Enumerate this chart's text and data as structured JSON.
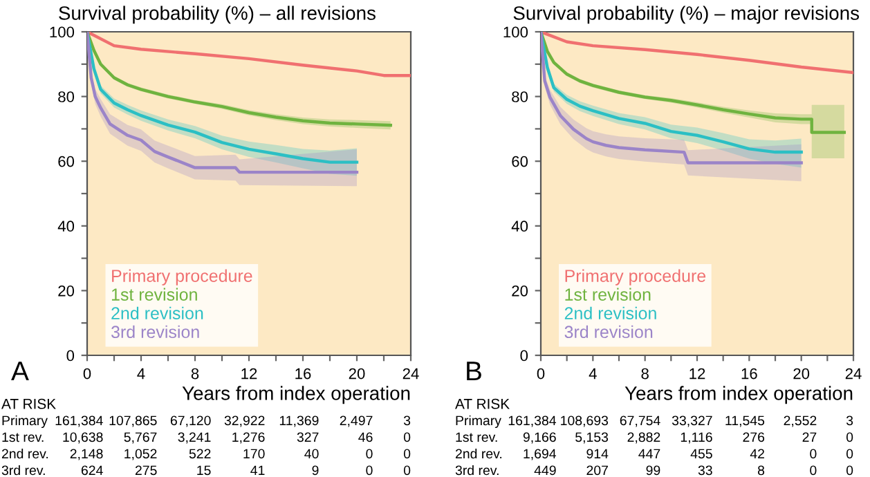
{
  "chart_data": [
    {
      "type": "line",
      "title": "Survival probability (%) – all revisions",
      "xlabel": "Years from index operation",
      "xlim": [
        0,
        24
      ],
      "ylim": [
        0,
        100
      ],
      "xticks": [
        0,
        {
          "value": 2,
          "label": null
        },
        4,
        {
          "value": 6,
          "label": null
        },
        8,
        {
          "value": 10,
          "label": null
        },
        12,
        {
          "value": 14,
          "label": null
        },
        16,
        {
          "value": 18,
          "label": null
        },
        20,
        {
          "value": 22,
          "label": null
        },
        24
      ],
      "yticks": [
        0,
        {
          "value": 10,
          "label": null
        },
        20,
        {
          "value": 30,
          "label": null
        },
        40,
        {
          "value": 50,
          "label": null
        },
        60,
        {
          "value": 70,
          "label": null
        },
        80,
        {
          "value": 90,
          "label": null
        },
        100
      ],
      "legend": "bottom left",
      "series": [
        {
          "name": "Primary procedure",
          "color": "#f07070",
          "x": [
            0,
            2,
            4,
            8,
            12,
            16,
            20,
            22,
            24
          ],
          "values": [
            100,
            95.7,
            94.6,
            93.2,
            91.7,
            89.7,
            87.9,
            86.5,
            86.5
          ]
        },
        {
          "name": "1st revision",
          "color": "#6fb33f",
          "x": [
            0,
            0.5,
            1,
            2,
            3,
            4,
            6,
            8,
            10,
            12,
            14,
            16,
            18,
            20,
            22.5
          ],
          "values": [
            100,
            94.3,
            90,
            85.8,
            83.6,
            82.2,
            80,
            78.3,
            76.9,
            75,
            73.6,
            72.5,
            71.8,
            71.5,
            71.1
          ],
          "lower": [
            100,
            93.8,
            89.4,
            85.2,
            83,
            81.6,
            79.4,
            77.7,
            76.2,
            74.2,
            72.7,
            71.5,
            70.7,
            70.3,
            69.8
          ],
          "upper": [
            100,
            94.8,
            90.6,
            86.4,
            84.2,
            82.8,
            80.6,
            78.9,
            77.6,
            75.8,
            74.5,
            73.5,
            72.9,
            72.7,
            72.4
          ]
        },
        {
          "name": "2nd revision",
          "color": "#2bbfc4",
          "x": [
            0,
            0.5,
            1,
            2,
            3,
            4,
            6,
            8,
            10,
            12,
            14,
            16,
            18,
            20
          ],
          "values": [
            100,
            88.6,
            82.2,
            78,
            75.9,
            74.1,
            71.2,
            69,
            65.8,
            63.7,
            62.3,
            60.8,
            59.7,
            59.7
          ],
          "lower": [
            100,
            87.6,
            81,
            76.6,
            74.4,
            72.5,
            69.5,
            67.1,
            63.7,
            61.3,
            59.6,
            57.8,
            56.1,
            55.5
          ],
          "upper": [
            100,
            89.6,
            83.4,
            79.4,
            77.4,
            75.7,
            72.9,
            70.9,
            67.9,
            66.1,
            65,
            63.8,
            63.3,
            64
          ]
        },
        {
          "name": "3rd revision",
          "color": "#9b84c8",
          "x": [
            0,
            0.3,
            0.6,
            1,
            1.7,
            3,
            4,
            5,
            6,
            8,
            11,
            11.3,
            20
          ],
          "values": [
            100,
            85.8,
            80,
            76.5,
            71.5,
            68,
            66.5,
            63,
            61.3,
            58,
            58,
            56.6,
            56.6
          ],
          "lower": [
            100,
            84,
            77.7,
            73.8,
            68.5,
            64.8,
            63.2,
            59.6,
            57.8,
            54.4,
            54,
            52.6,
            52.3
          ],
          "upper": [
            100,
            87.6,
            82.3,
            79.2,
            74.5,
            71.2,
            69.8,
            66.4,
            64.8,
            61.6,
            62,
            60.6,
            63.7
          ]
        }
      ],
      "annotations": [
        "A",
        "AT RISK",
        "Primary",
        "161,384",
        "107,865",
        "67,120",
        "32,922",
        "11,369",
        "2,497",
        "3",
        "1st rev.",
        "10,638",
        "5,767",
        "3,241",
        "1,276",
        "327",
        "46",
        "0",
        "2nd rev.",
        "2,148",
        "1,052",
        "522",
        "170",
        "40",
        "0",
        "0",
        "3rd rev.",
        "624",
        "275",
        "15",
        "41",
        "9",
        "0",
        "0"
      ]
    },
    {
      "type": "line",
      "title": "Survival probability (%) – major revisions",
      "xlabel": "Years from index operation",
      "xlim": [
        0,
        24
      ],
      "ylim": [
        0,
        100
      ],
      "xticks": [
        0,
        {
          "value": 2,
          "label": null
        },
        4,
        {
          "value": 6,
          "label": null
        },
        8,
        {
          "value": 10,
          "label": null
        },
        12,
        {
          "value": 14,
          "label": null
        },
        16,
        {
          "value": 18,
          "label": null
        },
        20,
        {
          "value": 22,
          "label": null
        },
        24
      ],
      "yticks": [
        0,
        {
          "value": 10,
          "label": null
        },
        20,
        {
          "value": 30,
          "label": null
        },
        40,
        {
          "value": 50,
          "label": null
        },
        60,
        {
          "value": 70,
          "label": null
        },
        80,
        {
          "value": 90,
          "label": null
        },
        100
      ],
      "legend": "bottom left",
      "series": [
        {
          "name": "Primary procedure",
          "color": "#f07070",
          "x": [
            0,
            2,
            4,
            8,
            12,
            16,
            20,
            24
          ],
          "values": [
            100,
            96.9,
            95.7,
            94.5,
            93,
            91.2,
            89.1,
            87.4
          ]
        },
        {
          "name": "1st revision",
          "color": "#6fb33f",
          "x": [
            0,
            0.5,
            1,
            2,
            3,
            4,
            6,
            8,
            10,
            12,
            14,
            16,
            18,
            20,
            20.8,
            20.8,
            23.3
          ],
          "values": [
            100,
            94,
            90.5,
            86.9,
            84.8,
            83.4,
            81.3,
            79.8,
            78.8,
            77.4,
            75.9,
            74.6,
            73.4,
            73,
            73,
            68.9,
            68.9
          ],
          "lower": [
            100,
            93.5,
            89.9,
            86.3,
            84.2,
            82.8,
            80.7,
            79.2,
            78.1,
            76.6,
            75,
            73.5,
            72,
            71.5,
            71.5,
            60.9,
            60.9
          ],
          "upper": [
            100,
            94.5,
            91.1,
            87.5,
            85.4,
            84,
            81.9,
            80.4,
            79.5,
            78.2,
            76.8,
            75.7,
            74.8,
            74.5,
            74.5,
            77.4,
            77.4
          ]
        },
        {
          "name": "2nd revision",
          "color": "#2bbfc4",
          "x": [
            0,
            0.5,
            1,
            2,
            3,
            4,
            6,
            8,
            10,
            12,
            14,
            16,
            18,
            20
          ],
          "values": [
            100,
            89,
            82.7,
            79.1,
            77,
            75.6,
            73.2,
            71.7,
            69.2,
            68,
            66,
            63.8,
            62.8,
            62.8
          ],
          "lower": [
            100,
            88,
            81.5,
            77.7,
            75.5,
            74,
            71.5,
            69.8,
            67.1,
            65.6,
            63.3,
            60.8,
            59.2,
            58
          ],
          "upper": [
            100,
            90,
            83.9,
            80.5,
            78.5,
            77.2,
            74.9,
            73.6,
            71.3,
            70.4,
            68.7,
            66.8,
            66.4,
            67
          ]
        },
        {
          "name": "3rd revision",
          "color": "#9b84c8",
          "x": [
            0,
            0.3,
            0.7,
            1.5,
            2.5,
            3.5,
            4,
            5,
            6,
            8,
            11,
            11.3,
            20
          ],
          "values": [
            100,
            84.8,
            79.8,
            74.1,
            69.9,
            67,
            66,
            64.9,
            64.2,
            63.5,
            62.8,
            59.5,
            59.5
          ],
          "lower": [
            100,
            83,
            77.5,
            71.4,
            66.9,
            63.8,
            62.7,
            61.5,
            60.7,
            59.9,
            59,
            55.6,
            53.8
          ],
          "upper": [
            100,
            86.6,
            82.1,
            76.8,
            72.9,
            70.2,
            69.3,
            68.3,
            67.7,
            67.1,
            66.6,
            63.4,
            65.2
          ]
        }
      ],
      "annotations": [
        "B",
        "AT RISK",
        "Primary",
        "161,384",
        "108,693",
        "67,754",
        "33,327",
        "11,545",
        "2,552",
        "3",
        "1st rev.",
        "9,166",
        "5,153",
        "2,882",
        "1,116",
        "276",
        "27",
        "0",
        "2nd rev.",
        "1,694",
        "914",
        "447",
        "455",
        "42",
        "0",
        "0",
        "3rd rev.",
        "449",
        "207",
        "99",
        "33",
        "8",
        "0",
        "0"
      ]
    }
  ]
}
